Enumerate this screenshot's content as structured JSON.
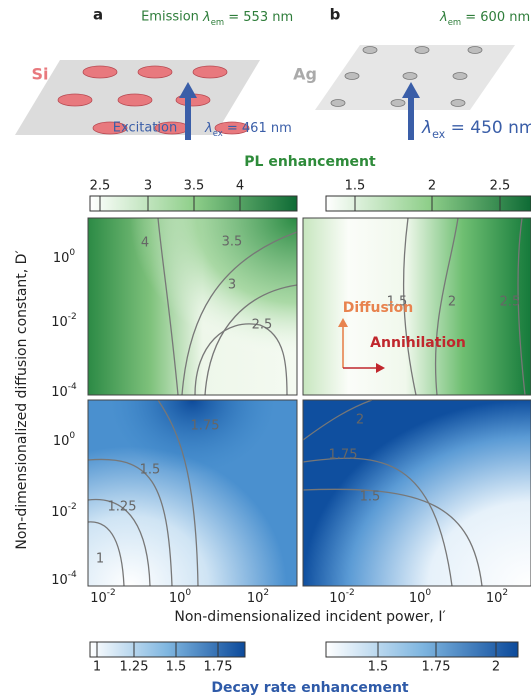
{
  "panel_a": {
    "label": "a",
    "emission": "Emission",
    "em": {
      "symbol": "λ",
      "sub": "em",
      "text": " = 553 nm"
    },
    "material": "Si",
    "excitation": "Excitation",
    "ex": {
      "symbol": "λ",
      "sub": "ex",
      "text": " = 461 nm"
    }
  },
  "panel_b": {
    "label": "b",
    "em": {
      "symbol": "λ",
      "sub": "em",
      "text": " = 600 nm"
    },
    "material": "Ag",
    "ex": {
      "symbol": "λ",
      "sub": "ex",
      "text": " = 450 nm"
    }
  },
  "pl_colorbar": {
    "title": "PL enhancement",
    "left_ticks": [
      "2.5",
      "3",
      "3.5",
      "4"
    ],
    "right_ticks": [
      "1.5",
      "2",
      "2.5"
    ]
  },
  "decay_colorbar": {
    "title": "Decay rate enhancement",
    "left_ticks": [
      "1",
      "1.25",
      "1.5",
      "1.75"
    ],
    "right_ticks": [
      "1.5",
      "1.75",
      "2"
    ]
  },
  "y_axis": {
    "label": "Non-dimensionalized diffusion constant, D′",
    "ticks": [
      {
        "base": "10",
        "exp": "0"
      },
      {
        "base": "10",
        "exp": "-2"
      },
      {
        "base": "10",
        "exp": "-4"
      }
    ]
  },
  "x_axis": {
    "label": "Non-dimensionalized incident power, I′",
    "ticks": [
      {
        "base": "10",
        "exp": "-2"
      },
      {
        "base": "10",
        "exp": "0"
      },
      {
        "base": "10",
        "exp": "2"
      }
    ]
  },
  "contours": {
    "pl_left": [
      "4",
      "3.5",
      "3",
      "2.5"
    ],
    "pl_right": [
      "1.5",
      "2",
      "2.5"
    ],
    "decay_left": [
      "1.75",
      "1.5",
      "1.25",
      "1"
    ],
    "decay_right": [
      "2",
      "1.75",
      "1.5"
    ]
  },
  "arrows": {
    "diffusion": "Diffusion",
    "annihilation": "Annihilation"
  }
}
